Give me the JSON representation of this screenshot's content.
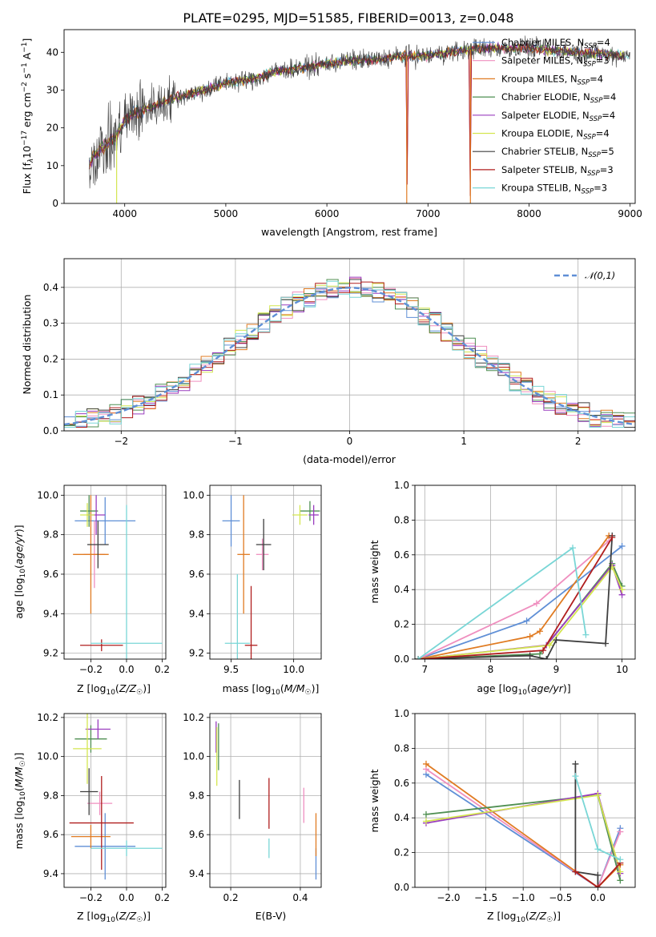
{
  "figure": {
    "title": "PLATE=0295, MJD=51585, FIBERID=0013, z=0.048",
    "models": [
      {
        "name": "Chabrier MILES",
        "nssp": "4",
        "color": "#5f8fd6"
      },
      {
        "name": "Salpeter MILES",
        "nssp": "3",
        "color": "#ef8fbf"
      },
      {
        "name": "Kroupa MILES",
        "nssp": "4",
        "color": "#e07b22"
      },
      {
        "name": "Chabrier ELODIE",
        "nssp": "4",
        "color": "#4f8f52"
      },
      {
        "name": "Salpeter ELODIE",
        "nssp": "4",
        "color": "#9a3dbf"
      },
      {
        "name": "Kroupa ELODIE",
        "nssp": "4",
        "color": "#d4e650"
      },
      {
        "name": "Chabrier STELIB",
        "nssp": "5",
        "color": "#3f3f3f"
      },
      {
        "name": "Salpeter STELIB",
        "nssp": "3",
        "color": "#b01e1e"
      },
      {
        "name": "Kroupa STELIB",
        "nssp": "3",
        "color": "#79d6d6"
      }
    ]
  },
  "chart_data": [
    {
      "id": "spectrum",
      "type": "line",
      "xlabel": "wavelength [Angstrom, rest frame]",
      "ylabel": "Flux [f_λ10^-17 erg cm^-2 s^-1 A^-1]",
      "xlim": [
        3400,
        9050
      ],
      "ylim": [
        0,
        46
      ],
      "xticks": [
        4000,
        5000,
        6000,
        7000,
        8000,
        9000
      ],
      "yticks": [
        0,
        10,
        20,
        30,
        40
      ],
      "x_range_data": [
        3650,
        9000
      ],
      "continuum": [
        [
          3650,
          10
        ],
        [
          3700,
          13
        ],
        [
          3800,
          15
        ],
        [
          3900,
          17
        ],
        [
          4000,
          22
        ],
        [
          4100,
          24
        ],
        [
          4300,
          26
        ],
        [
          4500,
          28
        ],
        [
          4800,
          30
        ],
        [
          5000,
          32
        ],
        [
          5300,
          33
        ],
        [
          5500,
          35
        ],
        [
          5800,
          36
        ],
        [
          6000,
          37
        ],
        [
          6300,
          38
        ],
        [
          6500,
          38
        ],
        [
          6700,
          39
        ],
        [
          7000,
          39
        ],
        [
          7200,
          40
        ],
        [
          7500,
          41
        ],
        [
          8000,
          41
        ],
        [
          8500,
          40
        ],
        [
          9000,
          39
        ]
      ],
      "dropouts": [
        [
          3920,
          2
        ],
        [
          6790,
          5
        ],
        [
          7420,
          2
        ]
      ],
      "legend": "upper right",
      "grid": false
    },
    {
      "id": "residuals",
      "type": "histogram",
      "xlabel": "(data-model)/error",
      "ylabel": "Normed distribution",
      "xlim": [
        -2.5,
        2.5
      ],
      "ylim": [
        0,
        0.48
      ],
      "xticks": [
        -2,
        -1,
        0,
        1,
        2
      ],
      "yticks": [
        0.0,
        0.1,
        0.2,
        0.3,
        0.4
      ],
      "bin_width": 0.1,
      "reference": {
        "label": "𝒩(0,1)",
        "mean": 0,
        "sigma": 1,
        "color": "#5f8fd6"
      },
      "legend": "upper right",
      "grid": true
    },
    {
      "id": "age_vs_Z",
      "type": "scatter",
      "xlabel": "Z [log10(Z/Z☉)]",
      "ylabel": "age  [log10(age/yr)]",
      "xlim": [
        -0.35,
        0.22
      ],
      "ylim": [
        9.17,
        10.05
      ],
      "xticks": [
        -0.2,
        0.0,
        0.2
      ],
      "yticks": [
        9.2,
        9.4,
        9.6,
        9.8,
        10.0
      ],
      "grid": true,
      "points": [
        {
          "m": 0,
          "x": -0.12,
          "y": 9.87,
          "ex": 0.17,
          "ey": 0.12
        },
        {
          "m": 1,
          "x": -0.18,
          "y": 9.7,
          "ex": 0.06,
          "ey": 0.17
        },
        {
          "m": 2,
          "x": -0.2,
          "y": 9.7,
          "ex": 0.1,
          "ey": 0.3
        },
        {
          "m": 3,
          "x": -0.21,
          "y": 9.92,
          "ex": 0.05,
          "ey": 0.08
        },
        {
          "m": 4,
          "x": -0.17,
          "y": 9.9,
          "ex": 0.05,
          "ey": 0.1
        },
        {
          "m": 5,
          "x": -0.22,
          "y": 9.9,
          "ex": 0.04,
          "ey": 0.06
        },
        {
          "m": 6,
          "x": -0.16,
          "y": 9.75,
          "ex": 0.06,
          "ey": 0.12
        },
        {
          "m": 7,
          "x": -0.14,
          "y": 9.24,
          "ex": 0.12,
          "ey": 0.03
        },
        {
          "m": 8,
          "x": 0.0,
          "y": 9.25,
          "ex": 0.2,
          "ey": 0.7
        }
      ]
    },
    {
      "id": "age_vs_mass",
      "type": "scatter",
      "xlabel": "mass [log10(M/M☉)]",
      "ylabel": "",
      "xlim": [
        9.33,
        10.22
      ],
      "ylim": [
        9.17,
        10.05
      ],
      "xticks": [
        9.5,
        10.0
      ],
      "yticks": [
        9.2,
        9.4,
        9.6,
        9.8,
        10.0
      ],
      "grid": true,
      "points": [
        {
          "m": 0,
          "x": 9.5,
          "y": 9.87,
          "ex": 0.07,
          "ey": 0.13
        },
        {
          "m": 1,
          "x": 9.75,
          "y": 9.7,
          "ex": 0.05,
          "ey": 0.08
        },
        {
          "m": 2,
          "x": 9.6,
          "y": 9.7,
          "ex": 0.05,
          "ey": 0.3
        },
        {
          "m": 3,
          "x": 10.13,
          "y": 9.92,
          "ex": 0.08,
          "ey": 0.05
        },
        {
          "m": 4,
          "x": 10.16,
          "y": 9.9,
          "ex": 0.04,
          "ey": 0.05
        },
        {
          "m": 5,
          "x": 10.05,
          "y": 9.9,
          "ex": 0.06,
          "ey": 0.05
        },
        {
          "m": 6,
          "x": 9.76,
          "y": 9.75,
          "ex": 0.06,
          "ey": 0.13
        },
        {
          "m": 7,
          "x": 9.66,
          "y": 9.24,
          "ex": 0.05,
          "ey": 0.3
        },
        {
          "m": 8,
          "x": 9.55,
          "y": 9.25,
          "ex": 0.1,
          "ey": 0.35
        }
      ]
    },
    {
      "id": "massweight_vs_age",
      "type": "line",
      "xlabel": "age  [log10(age/yr)]",
      "ylabel": "mass weight",
      "xlim": [
        6.85,
        10.2
      ],
      "ylim": [
        0,
        1.0
      ],
      "xticks": [
        7,
        8,
        9,
        10
      ],
      "yticks": [
        0.0,
        0.2,
        0.4,
        0.6,
        0.8,
        1.0
      ],
      "grid": true,
      "series": [
        {
          "m": 0,
          "x": [
            6.9,
            8.55,
            10.0
          ],
          "y": [
            0.0,
            0.22,
            0.65
          ]
        },
        {
          "m": 1,
          "x": [
            6.9,
            8.7,
            9.8
          ],
          "y": [
            0.0,
            0.32,
            0.68
          ]
        },
        {
          "m": 2,
          "x": [
            6.9,
            8.6,
            8.75,
            9.8
          ],
          "y": [
            0.0,
            0.13,
            0.16,
            0.71
          ]
        },
        {
          "m": 3,
          "x": [
            6.9,
            8.75,
            9.85,
            10.0
          ],
          "y": [
            0.0,
            0.03,
            0.55,
            0.42
          ]
        },
        {
          "m": 4,
          "x": [
            6.9,
            8.85,
            9.85,
            10.0
          ],
          "y": [
            0.0,
            0.08,
            0.54,
            0.37
          ]
        },
        {
          "m": 5,
          "x": [
            6.9,
            8.9,
            9.85,
            10.0
          ],
          "y": [
            0.0,
            0.08,
            0.53,
            0.4
          ]
        },
        {
          "m": 6,
          "x": [
            6.9,
            8.6,
            8.85,
            9.0,
            9.75,
            9.85
          ],
          "y": [
            0.0,
            0.02,
            0.0,
            0.11,
            0.09,
            0.71
          ]
        },
        {
          "m": 7,
          "x": [
            6.9,
            8.8,
            9.85
          ],
          "y": [
            0.0,
            0.05,
            0.7
          ]
        },
        {
          "m": 8,
          "x": [
            6.9,
            9.25,
            9.45
          ],
          "y": [
            0.0,
            0.64,
            0.14
          ]
        }
      ]
    },
    {
      "id": "mass_vs_Z",
      "type": "scatter",
      "xlabel": "Z [log10(Z/Z☉)]",
      "ylabel": "mass [log10(M/M☉)]",
      "xlim": [
        -0.35,
        0.22
      ],
      "ylim": [
        9.33,
        10.22
      ],
      "xticks": [
        -0.2,
        0.0,
        0.2
      ],
      "yticks": [
        9.4,
        9.6,
        9.8,
        10.0,
        10.2
      ],
      "grid": true,
      "points": [
        {
          "m": 0,
          "x": -0.12,
          "y": 9.54,
          "ex": 0.17,
          "ey": 0.17
        },
        {
          "m": 1,
          "x": -0.15,
          "y": 9.76,
          "ex": 0.07,
          "ey": 0.06
        },
        {
          "m": 2,
          "x": -0.2,
          "y": 9.59,
          "ex": 0.11,
          "ey": 0.06
        },
        {
          "m": 3,
          "x": -0.2,
          "y": 10.09,
          "ex": 0.09,
          "ey": 0.07
        },
        {
          "m": 4,
          "x": -0.16,
          "y": 10.14,
          "ex": 0.07,
          "ey": 0.05
        },
        {
          "m": 5,
          "x": -0.22,
          "y": 10.04,
          "ex": 0.08,
          "ey": 0.18
        },
        {
          "m": 6,
          "x": -0.21,
          "y": 9.82,
          "ex": 0.05,
          "ey": 0.12
        },
        {
          "m": 7,
          "x": -0.14,
          "y": 9.66,
          "ex": 0.18,
          "ey": 0.24
        },
        {
          "m": 8,
          "x": 0.0,
          "y": 9.53,
          "ex": 0.2,
          "ey": 0.04
        }
      ]
    },
    {
      "id": "mass_vs_EBV",
      "type": "scatter",
      "xlabel": "E(B-V)",
      "ylabel": "",
      "xlim": [
        0.14,
        0.46
      ],
      "ylim": [
        9.33,
        10.22
      ],
      "xticks": [
        0.2,
        0.4
      ],
      "yticks": [
        9.4,
        9.6,
        9.8,
        10.0,
        10.2
      ],
      "grid": true,
      "points": [
        {
          "m": 0,
          "x": 0.445,
          "y": 9.45,
          "ex": 0,
          "ey": 0.08
        },
        {
          "m": 1,
          "x": 0.41,
          "y": 9.75,
          "ex": 0,
          "ey": 0.09
        },
        {
          "m": 2,
          "x": 0.445,
          "y": 9.6,
          "ex": 0,
          "ey": 0.11
        },
        {
          "m": 3,
          "x": 0.165,
          "y": 10.05,
          "ex": 0,
          "ey": 0.12
        },
        {
          "m": 4,
          "x": 0.158,
          "y": 10.1,
          "ex": 0,
          "ey": 0.08
        },
        {
          "m": 5,
          "x": 0.16,
          "y": 10.0,
          "ex": 0,
          "ey": 0.15
        },
        {
          "m": 6,
          "x": 0.225,
          "y": 9.78,
          "ex": 0,
          "ey": 0.1
        },
        {
          "m": 7,
          "x": 0.31,
          "y": 9.76,
          "ex": 0,
          "ey": 0.13
        },
        {
          "m": 8,
          "x": 0.31,
          "y": 9.53,
          "ex": 0,
          "ey": 0.05
        }
      ]
    },
    {
      "id": "massweight_vs_Z",
      "type": "line",
      "xlabel": "Z [log10(Z/Z☉)]",
      "ylabel": "mass weight",
      "xlim": [
        -2.45,
        0.5
      ],
      "ylim": [
        0,
        1.0
      ],
      "xticks": [
        -2.0,
        -1.5,
        -1.0,
        -0.5,
        0.0
      ],
      "yticks": [
        0.0,
        0.2,
        0.4,
        0.6,
        0.8,
        1.0
      ],
      "grid": true,
      "series": [
        {
          "m": 0,
          "x": [
            -2.3,
            0.0,
            0.3
          ],
          "y": [
            0.65,
            0.0,
            0.34
          ]
        },
        {
          "m": 1,
          "x": [
            -2.3,
            0.0,
            0.3
          ],
          "y": [
            0.68,
            0.0,
            0.32
          ]
        },
        {
          "m": 2,
          "x": [
            -2.3,
            0.0,
            0.3
          ],
          "y": [
            0.71,
            0.0,
            0.13
          ]
        },
        {
          "m": 3,
          "x": [
            -2.3,
            0.0,
            0.3
          ],
          "y": [
            0.42,
            0.53,
            0.04
          ]
        },
        {
          "m": 4,
          "x": [
            -2.3,
            0.0,
            0.3
          ],
          "y": [
            0.37,
            0.54,
            0.08
          ]
        },
        {
          "m": 5,
          "x": [
            -2.3,
            0.0,
            0.3
          ],
          "y": [
            0.38,
            0.53,
            0.09
          ]
        },
        {
          "m": 6,
          "x": [
            -0.3,
            -0.3,
            0.0,
            0.0
          ],
          "y": [
            0.71,
            0.09,
            0.07,
            0.0
          ]
        },
        {
          "m": 7,
          "x": [
            -0.3,
            0.0,
            0.3
          ],
          "y": [
            0.09,
            0.0,
            0.14
          ]
        },
        {
          "m": 8,
          "x": [
            -0.3,
            0.0,
            0.3
          ],
          "y": [
            0.64,
            0.22,
            0.16
          ]
        }
      ]
    }
  ]
}
